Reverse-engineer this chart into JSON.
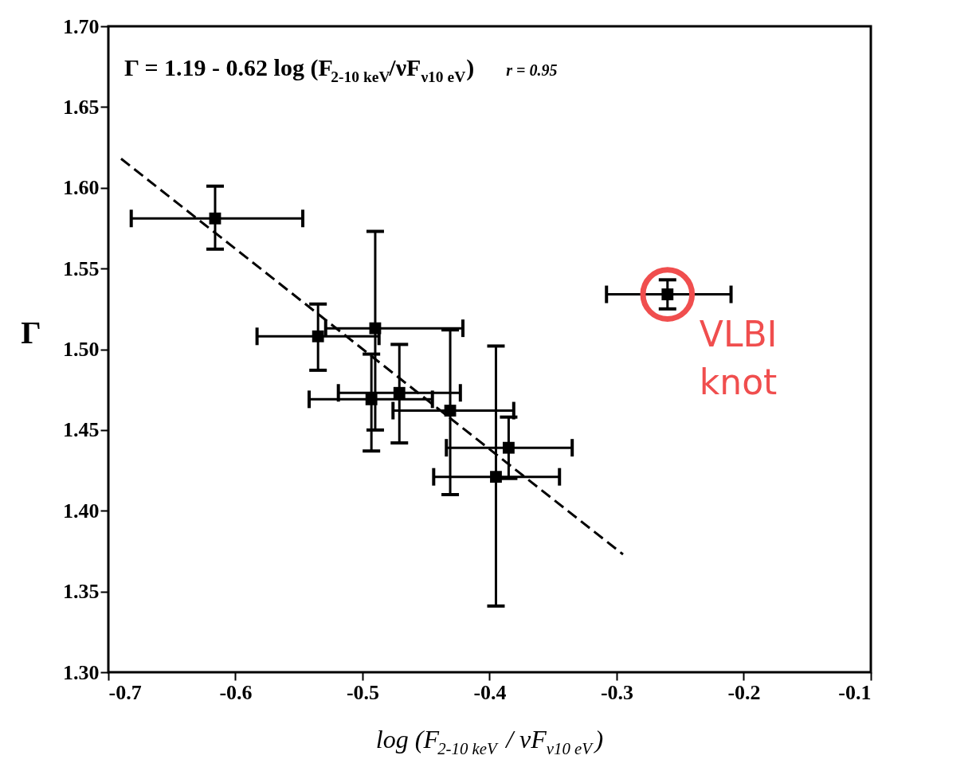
{
  "chart_data": {
    "type": "scatter",
    "xlabel": "log (F$_{2-10 keV}$ / νF$_{ν10 eV}$)",
    "ylabel": "Γ",
    "xlim": [
      -0.7,
      -0.1
    ],
    "xticks": [
      -0.7,
      -0.6,
      -0.5,
      -0.4,
      -0.3,
      -0.2,
      -0.1
    ],
    "ylim": [
      1.3,
      1.7
    ],
    "yticks": [
      {
        "value": 1.3,
        "label": "1.30"
      },
      {
        "value": 1.35,
        "label": "1.35"
      },
      {
        "value": 1.4,
        "label": "1.40"
      },
      {
        "value": 1.45,
        "label": "1.45"
      },
      {
        "value": 1.5,
        "label": "1.50"
      },
      {
        "value": 1.55,
        "label": "1.55"
      },
      {
        "value": 1.6,
        "label": "1.60"
      },
      {
        "value": 1.65,
        "label": "1.65"
      },
      {
        "value": 1.7,
        "label": "1.70"
      }
    ],
    "grid": false,
    "series": [
      {
        "marker": "square",
        "color": "#000000",
        "x": [
          -0.616,
          -0.535,
          -0.49,
          -0.493,
          -0.471,
          -0.431,
          -0.385,
          -0.395,
          -0.26
        ],
        "values": [
          1.581,
          1.508,
          1.513,
          1.469,
          1.473,
          1.462,
          1.439,
          1.421,
          1.534
        ],
        "errors": [
          [
            1.562,
            1.601
          ],
          [
            1.487,
            1.528
          ],
          [
            1.45,
            1.573
          ],
          [
            1.437,
            1.497
          ],
          [
            1.442,
            1.503
          ],
          [
            1.41,
            1.512
          ],
          [
            1.42,
            1.458
          ],
          [
            1.341,
            1.502
          ],
          [
            1.525,
            1.543
          ]
        ],
        "xerrors": [
          [
            -0.682,
            -0.547
          ],
          [
            -0.583,
            -0.487
          ],
          [
            -0.529,
            -0.421
          ],
          [
            -0.542,
            -0.445
          ],
          [
            -0.519,
            -0.423
          ],
          [
            -0.476,
            -0.381
          ],
          [
            -0.434,
            -0.335
          ],
          [
            -0.444,
            -0.345
          ],
          [
            -0.308,
            -0.21
          ]
        ]
      },
      {
        "type": "line",
        "color": "#000000",
        "line_style": "dashed",
        "x": [
          -0.69,
          -0.295
        ],
        "values": [
          1.618,
          1.373
        ]
      }
    ],
    "annotations": [
      "Γ = 1.19 - 0.62 log (F$_{2-10 keV}$/νF$_{ν10 eV}$)",
      "r = 0.95",
      {
        "text": "VLBI knot",
        "x": -0.26,
        "y": 1.534
      }
    ]
  }
}
